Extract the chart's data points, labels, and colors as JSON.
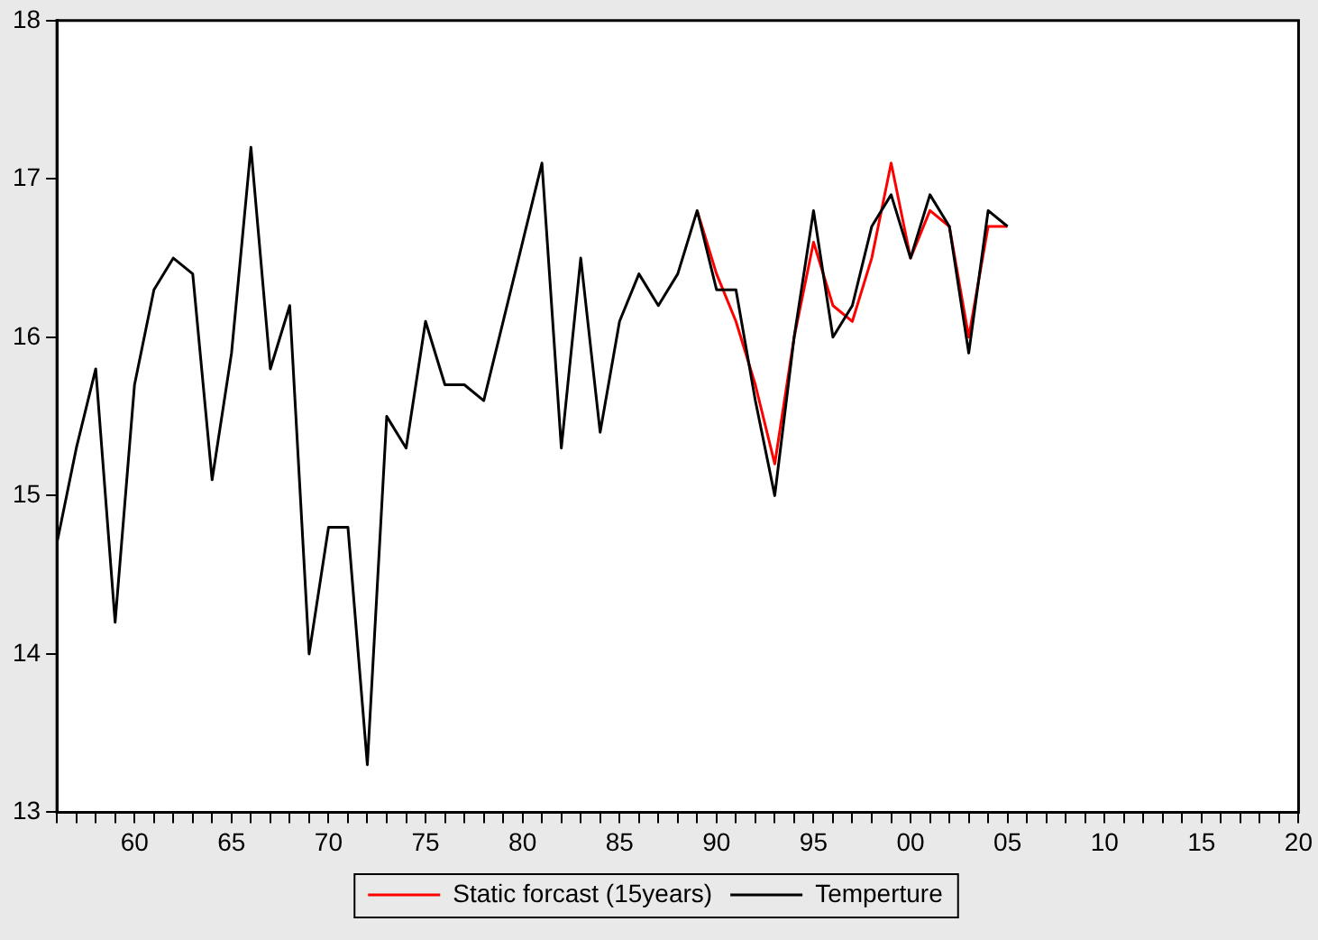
{
  "chart_data": {
    "type": "line",
    "xlim": [
      1956,
      2020
    ],
    "ylim": [
      13,
      18
    ],
    "yticks": [
      13,
      14,
      15,
      16,
      17,
      18
    ],
    "xticks": [
      {
        "value": 1956,
        "label": null
      },
      {
        "value": 1957,
        "label": null
      },
      {
        "value": 1958,
        "label": null
      },
      {
        "value": 1959,
        "label": null
      },
      {
        "value": 1960,
        "label": "60"
      },
      {
        "value": 1961,
        "label": null
      },
      {
        "value": 1962,
        "label": null
      },
      {
        "value": 1963,
        "label": null
      },
      {
        "value": 1964,
        "label": null
      },
      {
        "value": 1965,
        "label": "65"
      },
      {
        "value": 1966,
        "label": null
      },
      {
        "value": 1967,
        "label": null
      },
      {
        "value": 1968,
        "label": null
      },
      {
        "value": 1969,
        "label": null
      },
      {
        "value": 1970,
        "label": "70"
      },
      {
        "value": 1971,
        "label": null
      },
      {
        "value": 1972,
        "label": null
      },
      {
        "value": 1973,
        "label": null
      },
      {
        "value": 1974,
        "label": null
      },
      {
        "value": 1975,
        "label": "75"
      },
      {
        "value": 1976,
        "label": null
      },
      {
        "value": 1977,
        "label": null
      },
      {
        "value": 1978,
        "label": null
      },
      {
        "value": 1979,
        "label": null
      },
      {
        "value": 1980,
        "label": "80"
      },
      {
        "value": 1981,
        "label": null
      },
      {
        "value": 1982,
        "label": null
      },
      {
        "value": 1983,
        "label": null
      },
      {
        "value": 1984,
        "label": null
      },
      {
        "value": 1985,
        "label": "85"
      },
      {
        "value": 1986,
        "label": null
      },
      {
        "value": 1987,
        "label": null
      },
      {
        "value": 1988,
        "label": null
      },
      {
        "value": 1989,
        "label": null
      },
      {
        "value": 1990,
        "label": "90"
      },
      {
        "value": 1991,
        "label": null
      },
      {
        "value": 1992,
        "label": null
      },
      {
        "value": 1993,
        "label": null
      },
      {
        "value": 1994,
        "label": null
      },
      {
        "value": 1995,
        "label": "95"
      },
      {
        "value": 1996,
        "label": null
      },
      {
        "value": 1997,
        "label": null
      },
      {
        "value": 1998,
        "label": null
      },
      {
        "value": 1999,
        "label": null
      },
      {
        "value": 2000,
        "label": "00"
      },
      {
        "value": 2001,
        "label": null
      },
      {
        "value": 2002,
        "label": null
      },
      {
        "value": 2003,
        "label": null
      },
      {
        "value": 2004,
        "label": null
      },
      {
        "value": 2005,
        "label": "05"
      },
      {
        "value": 2006,
        "label": null
      },
      {
        "value": 2007,
        "label": null
      },
      {
        "value": 2008,
        "label": null
      },
      {
        "value": 2009,
        "label": null
      },
      {
        "value": 2010,
        "label": "10"
      },
      {
        "value": 2011,
        "label": null
      },
      {
        "value": 2012,
        "label": null
      },
      {
        "value": 2013,
        "label": null
      },
      {
        "value": 2014,
        "label": null
      },
      {
        "value": 2015,
        "label": "15"
      },
      {
        "value": 2016,
        "label": null
      },
      {
        "value": 2017,
        "label": null
      },
      {
        "value": 2018,
        "label": null
      },
      {
        "value": 2019,
        "label": null
      },
      {
        "value": 2020,
        "label": "20"
      }
    ],
    "grid": false,
    "legend": "bottom",
    "marker": "none",
    "line_style": "solid",
    "series": [
      {
        "name": "Static forcast (15years)",
        "color": "#ff0000",
        "x": [
          1989,
          1990,
          1991,
          1992,
          1993,
          1994,
          1995,
          1996,
          1997,
          1998,
          1999,
          2000,
          2001,
          2002,
          2003,
          2004,
          2005
        ],
        "values": [
          16.8,
          16.4,
          16.1,
          15.7,
          15.2,
          16.0,
          16.6,
          16.2,
          16.1,
          16.5,
          17.1,
          16.5,
          16.8,
          16.7,
          16.0,
          16.7,
          16.7
        ]
      },
      {
        "name": "Temperture",
        "color": "#000000",
        "x": [
          1956,
          1957,
          1958,
          1959,
          1960,
          1961,
          1962,
          1963,
          1964,
          1965,
          1966,
          1967,
          1968,
          1969,
          1970,
          1971,
          1972,
          1973,
          1974,
          1975,
          1976,
          1977,
          1978,
          1979,
          1980,
          1981,
          1982,
          1983,
          1984,
          1985,
          1986,
          1987,
          1988,
          1989,
          1990,
          1991,
          1992,
          1993,
          1994,
          1995,
          1996,
          1997,
          1998,
          1999,
          2000,
          2001,
          2002,
          2003,
          2004,
          2005
        ],
        "values": [
          14.7,
          15.3,
          15.8,
          14.2,
          15.7,
          16.3,
          16.5,
          16.4,
          15.1,
          15.9,
          17.2,
          15.8,
          16.2,
          14.0,
          14.8,
          14.8,
          13.3,
          15.5,
          15.3,
          16.1,
          15.7,
          15.7,
          15.6,
          16.1,
          16.6,
          17.1,
          15.3,
          16.5,
          15.4,
          16.1,
          16.4,
          16.2,
          16.4,
          16.8,
          16.3,
          16.3,
          15.6,
          15.0,
          16.0,
          16.8,
          16.0,
          16.2,
          16.7,
          16.9,
          16.5,
          16.9,
          16.7,
          15.9,
          16.8,
          16.7
        ]
      }
    ]
  }
}
